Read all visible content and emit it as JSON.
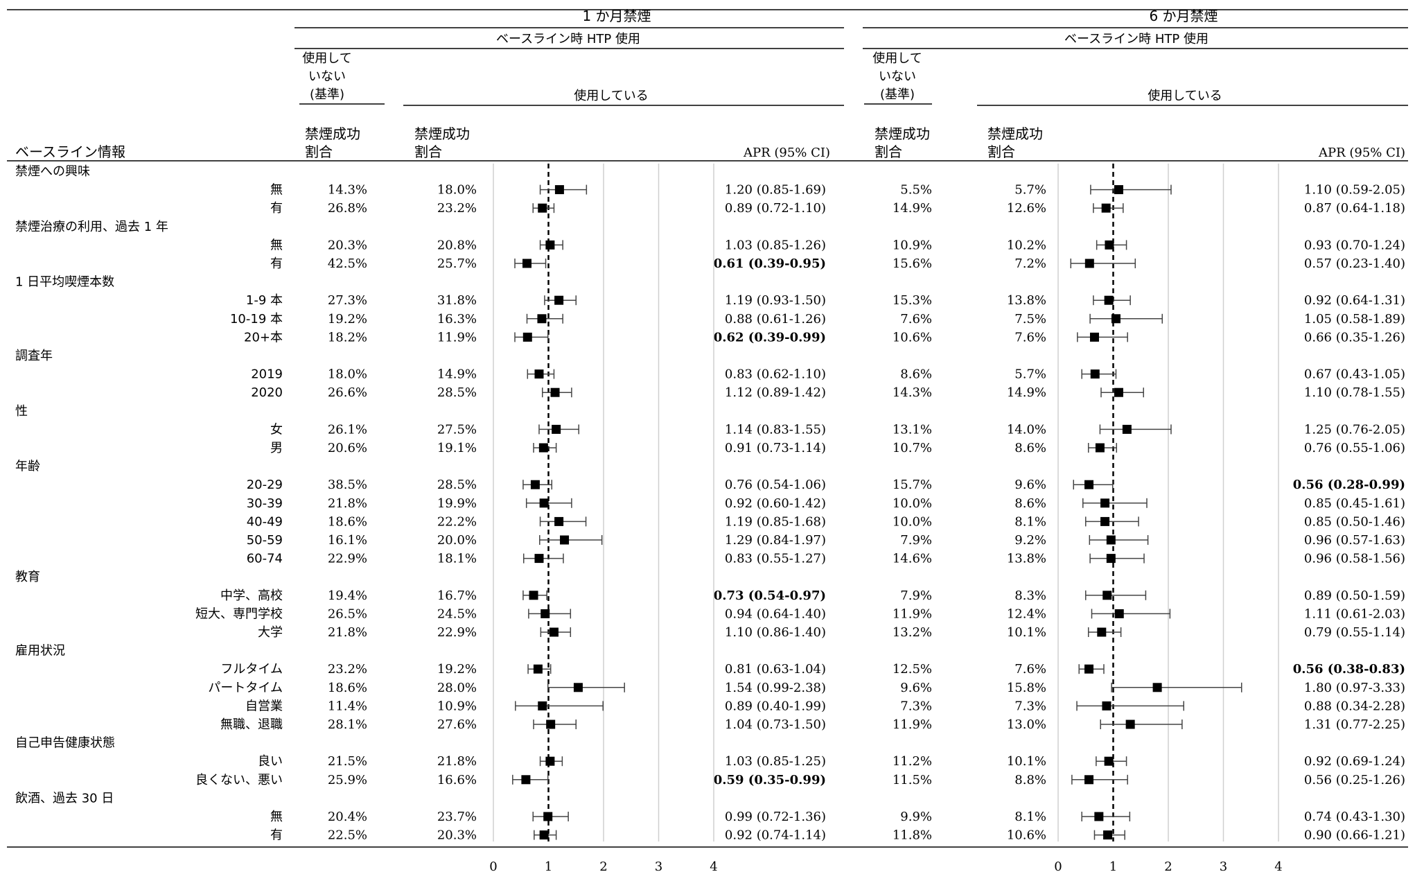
{
  "chart_data": {
    "type": "forest",
    "title": "",
    "panels": [
      {
        "title": "1 か月禁煙",
        "subtitle": "ベースライン時 HTP 使用",
        "xlim": [
          0,
          4
        ],
        "ticks": [
          "0",
          "1",
          "2",
          "3",
          "4"
        ],
        "reference": 1
      },
      {
        "title": "6 か月禁煙",
        "subtitle": "ベースライン時 HTP 使用",
        "xlim": [
          0,
          4
        ],
        "ticks": [
          "0",
          "1",
          "2",
          "3",
          "4"
        ],
        "reference": 1
      }
    ],
    "header": {
      "baseline_info": "ベースライン情報",
      "not_using": [
        "使用して",
        "いない",
        "(基準)"
      ],
      "using": "使用している",
      "success_rate": [
        "禁煙成功",
        "割合"
      ],
      "apr": "APR (95% CI)"
    },
    "rows": [
      {
        "group": "禁煙への興味"
      },
      {
        "label": "無",
        "p1_ref": "14.3%",
        "p1_htp": "18.0%",
        "p1_apr": "1.20 (0.85-1.69)",
        "p1_est": 1.2,
        "p1_lo": 0.85,
        "p1_hi": 1.69,
        "p1_sig": false,
        "p2_ref": "5.5%",
        "p2_htp": "5.7%",
        "p2_apr": "1.10 (0.59-2.05)",
        "p2_est": 1.1,
        "p2_lo": 0.59,
        "p2_hi": 2.05,
        "p2_sig": false
      },
      {
        "label": "有",
        "p1_ref": "26.8%",
        "p1_htp": "23.2%",
        "p1_apr": "0.89 (0.72-1.10)",
        "p1_est": 0.89,
        "p1_lo": 0.72,
        "p1_hi": 1.1,
        "p1_sig": false,
        "p2_ref": "14.9%",
        "p2_htp": "12.6%",
        "p2_apr": "0.87 (0.64-1.18)",
        "p2_est": 0.87,
        "p2_lo": 0.64,
        "p2_hi": 1.18,
        "p2_sig": false
      },
      {
        "group": "禁煙治療の利用、過去 1 年"
      },
      {
        "label": "無",
        "p1_ref": "20.3%",
        "p1_htp": "20.8%",
        "p1_apr": "1.03 (0.85-1.26)",
        "p1_est": 1.03,
        "p1_lo": 0.85,
        "p1_hi": 1.26,
        "p1_sig": false,
        "p2_ref": "10.9%",
        "p2_htp": "10.2%",
        "p2_apr": "0.93 (0.70-1.24)",
        "p2_est": 0.93,
        "p2_lo": 0.7,
        "p2_hi": 1.24,
        "p2_sig": false
      },
      {
        "label": "有",
        "p1_ref": "42.5%",
        "p1_htp": "25.7%",
        "p1_apr": "0.61 (0.39-0.95)",
        "p1_est": 0.61,
        "p1_lo": 0.39,
        "p1_hi": 0.95,
        "p1_sig": true,
        "p2_ref": "15.6%",
        "p2_htp": "7.2%",
        "p2_apr": "0.57 (0.23-1.40)",
        "p2_est": 0.57,
        "p2_lo": 0.23,
        "p2_hi": 1.4,
        "p2_sig": false
      },
      {
        "group": "1 日平均喫煙本数"
      },
      {
        "label": "1-9 本",
        "p1_ref": "27.3%",
        "p1_htp": "31.8%",
        "p1_apr": "1.19 (0.93-1.50)",
        "p1_est": 1.19,
        "p1_lo": 0.93,
        "p1_hi": 1.5,
        "p1_sig": false,
        "p2_ref": "15.3%",
        "p2_htp": "13.8%",
        "p2_apr": "0.92 (0.64-1.31)",
        "p2_est": 0.92,
        "p2_lo": 0.64,
        "p2_hi": 1.31,
        "p2_sig": false
      },
      {
        "label": "10-19 本",
        "p1_ref": "19.2%",
        "p1_htp": "16.3%",
        "p1_apr": "0.88 (0.61-1.26)",
        "p1_est": 0.88,
        "p1_lo": 0.61,
        "p1_hi": 1.26,
        "p1_sig": false,
        "p2_ref": "7.6%",
        "p2_htp": "7.5%",
        "p2_apr": "1.05 (0.58-1.89)",
        "p2_est": 1.05,
        "p2_lo": 0.58,
        "p2_hi": 1.89,
        "p2_sig": false
      },
      {
        "label": "20+本",
        "p1_ref": "18.2%",
        "p1_htp": "11.9%",
        "p1_apr": "0.62 (0.39-0.99)",
        "p1_est": 0.62,
        "p1_lo": 0.39,
        "p1_hi": 0.99,
        "p1_sig": true,
        "p2_ref": "10.6%",
        "p2_htp": "7.6%",
        "p2_apr": "0.66 (0.35-1.26)",
        "p2_est": 0.66,
        "p2_lo": 0.35,
        "p2_hi": 1.26,
        "p2_sig": false
      },
      {
        "group": "調査年"
      },
      {
        "label": "2019",
        "p1_ref": "18.0%",
        "p1_htp": "14.9%",
        "p1_apr": "0.83 (0.62-1.10)",
        "p1_est": 0.83,
        "p1_lo": 0.62,
        "p1_hi": 1.1,
        "p1_sig": false,
        "p2_ref": "8.6%",
        "p2_htp": "5.7%",
        "p2_apr": "0.67 (0.43-1.05)",
        "p2_est": 0.67,
        "p2_lo": 0.43,
        "p2_hi": 1.05,
        "p2_sig": false
      },
      {
        "label": "2020",
        "p1_ref": "26.6%",
        "p1_htp": "28.5%",
        "p1_apr": "1.12 (0.89-1.42)",
        "p1_est": 1.12,
        "p1_lo": 0.89,
        "p1_hi": 1.42,
        "p1_sig": false,
        "p2_ref": "14.3%",
        "p2_htp": "14.9%",
        "p2_apr": "1.10 (0.78-1.55)",
        "p2_est": 1.1,
        "p2_lo": 0.78,
        "p2_hi": 1.55,
        "p2_sig": false
      },
      {
        "group": "性"
      },
      {
        "label": "女",
        "p1_ref": "26.1%",
        "p1_htp": "27.5%",
        "p1_apr": "1.14 (0.83-1.55)",
        "p1_est": 1.14,
        "p1_lo": 0.83,
        "p1_hi": 1.55,
        "p1_sig": false,
        "p2_ref": "13.1%",
        "p2_htp": "14.0%",
        "p2_apr": "1.25 (0.76-2.05)",
        "p2_est": 1.25,
        "p2_lo": 0.76,
        "p2_hi": 2.05,
        "p2_sig": false
      },
      {
        "label": "男",
        "p1_ref": "20.6%",
        "p1_htp": "19.1%",
        "p1_apr": "0.91 (0.73-1.14)",
        "p1_est": 0.91,
        "p1_lo": 0.73,
        "p1_hi": 1.14,
        "p1_sig": false,
        "p2_ref": "10.7%",
        "p2_htp": "8.6%",
        "p2_apr": "0.76 (0.55-1.06)",
        "p2_est": 0.76,
        "p2_lo": 0.55,
        "p2_hi": 1.06,
        "p2_sig": false
      },
      {
        "group": "年齢"
      },
      {
        "label": "20-29",
        "p1_ref": "38.5%",
        "p1_htp": "28.5%",
        "p1_apr": "0.76 (0.54-1.06)",
        "p1_est": 0.76,
        "p1_lo": 0.54,
        "p1_hi": 1.06,
        "p1_sig": false,
        "p2_ref": "15.7%",
        "p2_htp": "9.6%",
        "p2_apr": "0.56 (0.28-0.99)",
        "p2_est": 0.56,
        "p2_lo": 0.28,
        "p2_hi": 0.99,
        "p2_sig": true
      },
      {
        "label": "30-39",
        "p1_ref": "21.8%",
        "p1_htp": "19.9%",
        "p1_apr": "0.92 (0.60-1.42)",
        "p1_est": 0.92,
        "p1_lo": 0.6,
        "p1_hi": 1.42,
        "p1_sig": false,
        "p2_ref": "10.0%",
        "p2_htp": "8.6%",
        "p2_apr": "0.85 (0.45-1.61)",
        "p2_est": 0.85,
        "p2_lo": 0.45,
        "p2_hi": 1.61,
        "p2_sig": false
      },
      {
        "label": "40-49",
        "p1_ref": "18.6%",
        "p1_htp": "22.2%",
        "p1_apr": "1.19 (0.85-1.68)",
        "p1_est": 1.19,
        "p1_lo": 0.85,
        "p1_hi": 1.68,
        "p1_sig": false,
        "p2_ref": "10.0%",
        "p2_htp": "8.1%",
        "p2_apr": "0.85 (0.50-1.46)",
        "p2_est": 0.85,
        "p2_lo": 0.5,
        "p2_hi": 1.46,
        "p2_sig": false
      },
      {
        "label": "50-59",
        "p1_ref": "16.1%",
        "p1_htp": "20.0%",
        "p1_apr": "1.29 (0.84-1.97)",
        "p1_est": 1.29,
        "p1_lo": 0.84,
        "p1_hi": 1.97,
        "p1_sig": false,
        "p2_ref": "7.9%",
        "p2_htp": "9.2%",
        "p2_apr": "0.96 (0.57-1.63)",
        "p2_est": 0.96,
        "p2_lo": 0.57,
        "p2_hi": 1.63,
        "p2_sig": false
      },
      {
        "label": "60-74",
        "p1_ref": "22.9%",
        "p1_htp": "18.1%",
        "p1_apr": "0.83 (0.55-1.27)",
        "p1_est": 0.83,
        "p1_lo": 0.55,
        "p1_hi": 1.27,
        "p1_sig": false,
        "p2_ref": "14.6%",
        "p2_htp": "13.8%",
        "p2_apr": "0.96 (0.58-1.56)",
        "p2_est": 0.96,
        "p2_lo": 0.58,
        "p2_hi": 1.56,
        "p2_sig": false
      },
      {
        "group": "教育"
      },
      {
        "label": "中学、高校",
        "p1_ref": "19.4%",
        "p1_htp": "16.7%",
        "p1_apr": "0.73 (0.54-0.97)",
        "p1_est": 0.73,
        "p1_lo": 0.54,
        "p1_hi": 0.97,
        "p1_sig": true,
        "p2_ref": "7.9%",
        "p2_htp": "8.3%",
        "p2_apr": "0.89 (0.50-1.59)",
        "p2_est": 0.89,
        "p2_lo": 0.5,
        "p2_hi": 1.59,
        "p2_sig": false
      },
      {
        "label": "短大、専門学校",
        "p1_ref": "26.5%",
        "p1_htp": "24.5%",
        "p1_apr": "0.94 (0.64-1.40)",
        "p1_est": 0.94,
        "p1_lo": 0.64,
        "p1_hi": 1.4,
        "p1_sig": false,
        "p2_ref": "11.9%",
        "p2_htp": "12.4%",
        "p2_apr": "1.11 (0.61-2.03)",
        "p2_est": 1.11,
        "p2_lo": 0.61,
        "p2_hi": 2.03,
        "p2_sig": false
      },
      {
        "label": "大学",
        "p1_ref": "21.8%",
        "p1_htp": "22.9%",
        "p1_apr": "1.10 (0.86-1.40)",
        "p1_est": 1.1,
        "p1_lo": 0.86,
        "p1_hi": 1.4,
        "p1_sig": false,
        "p2_ref": "13.2%",
        "p2_htp": "10.1%",
        "p2_apr": "0.79 (0.55-1.14)",
        "p2_est": 0.79,
        "p2_lo": 0.55,
        "p2_hi": 1.14,
        "p2_sig": false
      },
      {
        "group": "雇用状況"
      },
      {
        "label": "フルタイム",
        "p1_ref": "23.2%",
        "p1_htp": "19.2%",
        "p1_apr": "0.81 (0.63-1.04)",
        "p1_est": 0.81,
        "p1_lo": 0.63,
        "p1_hi": 1.04,
        "p1_sig": false,
        "p2_ref": "12.5%",
        "p2_htp": "7.6%",
        "p2_apr": "0.56 (0.38-0.83)",
        "p2_est": 0.56,
        "p2_lo": 0.38,
        "p2_hi": 0.83,
        "p2_sig": true
      },
      {
        "label": "パートタイム",
        "p1_ref": "18.6%",
        "p1_htp": "28.0%",
        "p1_apr": "1.54 (0.99-2.38)",
        "p1_est": 1.54,
        "p1_lo": 0.99,
        "p1_hi": 2.38,
        "p1_sig": false,
        "p2_ref": "9.6%",
        "p2_htp": "15.8%",
        "p2_apr": "1.80 (0.97-3.33)",
        "p2_est": 1.8,
        "p2_lo": 0.97,
        "p2_hi": 3.33,
        "p2_sig": false
      },
      {
        "label": "自営業",
        "p1_ref": "11.4%",
        "p1_htp": "10.9%",
        "p1_apr": "0.89 (0.40-1.99)",
        "p1_est": 0.89,
        "p1_lo": 0.4,
        "p1_hi": 1.99,
        "p1_sig": false,
        "p2_ref": "7.3%",
        "p2_htp": "7.3%",
        "p2_apr": "0.88 (0.34-2.28)",
        "p2_est": 0.88,
        "p2_lo": 0.34,
        "p2_hi": 2.28,
        "p2_sig": false
      },
      {
        "label": "無職、退職",
        "p1_ref": "28.1%",
        "p1_htp": "27.6%",
        "p1_apr": "1.04 (0.73-1.50)",
        "p1_est": 1.04,
        "p1_lo": 0.73,
        "p1_hi": 1.5,
        "p1_sig": false,
        "p2_ref": "11.9%",
        "p2_htp": "13.0%",
        "p2_apr": "1.31 (0.77-2.25)",
        "p2_est": 1.31,
        "p2_lo": 0.77,
        "p2_hi": 2.25,
        "p2_sig": false
      },
      {
        "group": "自己申告健康状態"
      },
      {
        "label": "良い",
        "p1_ref": "21.5%",
        "p1_htp": "21.8%",
        "p1_apr": "1.03 (0.85-1.25)",
        "p1_est": 1.03,
        "p1_lo": 0.85,
        "p1_hi": 1.25,
        "p1_sig": false,
        "p2_ref": "11.2%",
        "p2_htp": "10.1%",
        "p2_apr": "0.92 (0.69-1.24)",
        "p2_est": 0.92,
        "p2_lo": 0.69,
        "p2_hi": 1.24,
        "p2_sig": false
      },
      {
        "label": "良くない、悪い",
        "p1_ref": "25.9%",
        "p1_htp": "16.6%",
        "p1_apr": "0.59 (0.35-0.99)",
        "p1_est": 0.59,
        "p1_lo": 0.35,
        "p1_hi": 0.99,
        "p1_sig": true,
        "p2_ref": "11.5%",
        "p2_htp": "8.8%",
        "p2_apr": "0.56 (0.25-1.26)",
        "p2_est": 0.56,
        "p2_lo": 0.25,
        "p2_hi": 1.26,
        "p2_sig": false
      },
      {
        "group": "飲酒、過去 30 日"
      },
      {
        "label": "無",
        "p1_ref": "20.4%",
        "p1_htp": "23.7%",
        "p1_apr": "0.99 (0.72-1.36)",
        "p1_est": 0.99,
        "p1_lo": 0.72,
        "p1_hi": 1.36,
        "p1_sig": false,
        "p2_ref": "9.9%",
        "p2_htp": "8.1%",
        "p2_apr": "0.74 (0.43-1.30)",
        "p2_est": 0.74,
        "p2_lo": 0.43,
        "p2_hi": 1.3,
        "p2_sig": false
      },
      {
        "label": "有",
        "p1_ref": "22.5%",
        "p1_htp": "20.3%",
        "p1_apr": "0.92 (0.74-1.14)",
        "p1_est": 0.92,
        "p1_lo": 0.74,
        "p1_hi": 1.14,
        "p1_sig": false,
        "p2_ref": "11.8%",
        "p2_htp": "10.6%",
        "p2_apr": "0.90 (0.66-1.21)",
        "p2_est": 0.9,
        "p2_lo": 0.66,
        "p2_hi": 1.21,
        "p2_sig": false
      }
    ]
  }
}
